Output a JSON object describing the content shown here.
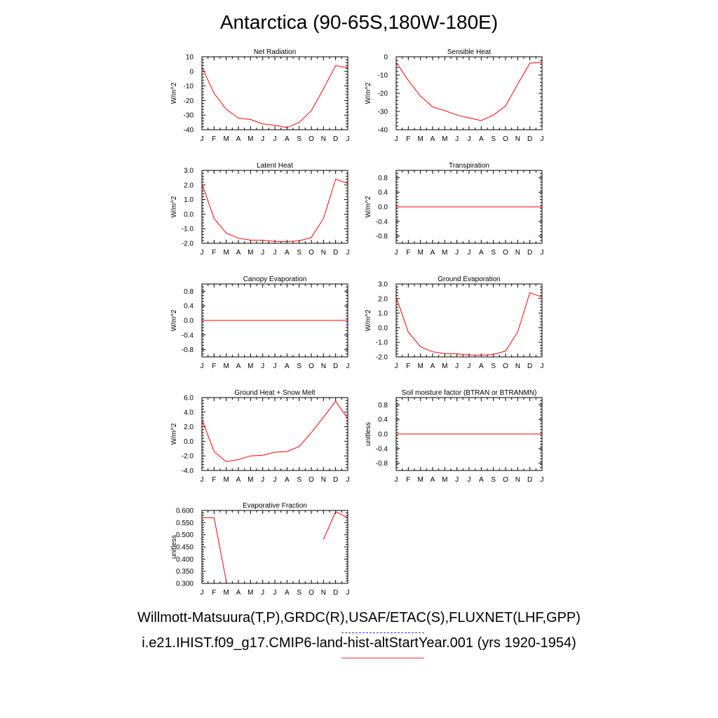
{
  "title": "Antarctica (90-65S,180W-180E)",
  "legend": {
    "obs": "Willmott-Matsuura(T,P),GRDC(R),USAF/ETAC(S),FLUXNET(LHF,GPP)",
    "model": "i.e21.IHIST.f09_g17.CMIP6-land-hist-altStartYear.001 (yrs 1920-1954)",
    "colors": {
      "obs": "#3333ff",
      "model": "#ff0000"
    }
  },
  "chart_data": [
    {
      "type": "line",
      "title": "Net Radiation",
      "ylabel": "W/m^2",
      "categories": [
        "J",
        "F",
        "M",
        "A",
        "M",
        "J",
        "J",
        "A",
        "S",
        "O",
        "N",
        "D",
        "J"
      ],
      "ylim": [
        -40,
        10
      ],
      "yticks": [
        "10",
        "0",
        "-10",
        "-20",
        "-30",
        "-40"
      ],
      "ytick_values": [
        10,
        0,
        -10,
        -20,
        -30,
        -40
      ],
      "series": [
        {
          "values": [
            3,
            -15,
            -26,
            -32,
            -33,
            -36,
            -37,
            -38.5,
            -35,
            -27,
            -12,
            4,
            2.5
          ]
        }
      ]
    },
    {
      "type": "line",
      "title": "Sensible Heat",
      "ylabel": "W/m^2",
      "categories": [
        "J",
        "F",
        "M",
        "A",
        "M",
        "J",
        "J",
        "A",
        "S",
        "O",
        "N",
        "D",
        "J"
      ],
      "ylim": [
        -40,
        0
      ],
      "yticks": [
        "0",
        "-10",
        "-20",
        "-30",
        "-40"
      ],
      "ytick_values": [
        0,
        -10,
        -20,
        -30,
        -40
      ],
      "series": [
        {
          "values": [
            -3,
            -13,
            -21.5,
            -27.5,
            -29.5,
            -32,
            -33.5,
            -35,
            -32,
            -27,
            -15,
            -3.5,
            -3
          ]
        }
      ]
    },
    {
      "type": "line",
      "title": "Latent Heat",
      "ylabel": "W/m^2",
      "categories": [
        "J",
        "F",
        "M",
        "A",
        "M",
        "J",
        "J",
        "A",
        "S",
        "O",
        "N",
        "D",
        "J"
      ],
      "ylim": [
        -2,
        3
      ],
      "yticks": [
        "3.0",
        "2.0",
        "1.0",
        "0.0",
        "-1.0",
        "-2.0"
      ],
      "ytick_values": [
        3,
        2,
        1,
        0,
        -1,
        -2
      ],
      "series": [
        {
          "values": [
            2.1,
            -0.3,
            -1.3,
            -1.65,
            -1.78,
            -1.8,
            -1.87,
            -1.88,
            -1.83,
            -1.6,
            -0.3,
            2.4,
            2.1
          ]
        }
      ]
    },
    {
      "type": "line",
      "title": "Transpiration",
      "ylabel": "W/m^2",
      "categories": [
        "J",
        "F",
        "M",
        "A",
        "M",
        "J",
        "J",
        "A",
        "S",
        "O",
        "N",
        "D",
        "J"
      ],
      "ylim": [
        -1,
        1
      ],
      "yticks": [
        "0.8",
        "0.4",
        "0.0",
        "-0.4",
        "-0.8"
      ],
      "ytick_values": [
        0.8,
        0.4,
        0,
        -0.4,
        -0.8
      ],
      "series": [
        {
          "values": [
            0,
            0,
            0,
            0,
            0,
            0,
            0,
            0,
            0,
            0,
            0,
            0,
            0
          ]
        }
      ]
    },
    {
      "type": "line",
      "title": "Canopy Evaporation",
      "ylabel": "W/m^2",
      "categories": [
        "J",
        "F",
        "M",
        "A",
        "M",
        "J",
        "J",
        "A",
        "S",
        "O",
        "N",
        "D",
        "J"
      ],
      "ylim": [
        -1,
        1
      ],
      "yticks": [
        "0.8",
        "0.4",
        "0.0",
        "-0.4",
        "-0.8"
      ],
      "ytick_values": [
        0.8,
        0.4,
        0,
        -0.4,
        -0.8
      ],
      "series": [
        {
          "values": [
            0,
            0,
            0,
            0,
            0,
            0,
            0,
            0,
            0,
            0,
            0,
            0,
            0
          ]
        }
      ]
    },
    {
      "type": "line",
      "title": "Ground Evaporation",
      "ylabel": "W/m^2",
      "categories": [
        "J",
        "F",
        "M",
        "A",
        "M",
        "J",
        "J",
        "A",
        "S",
        "O",
        "N",
        "D",
        "J"
      ],
      "ylim": [
        -2,
        3
      ],
      "yticks": [
        "3.0",
        "2.0",
        "1.0",
        "0.0",
        "-1.0",
        "-2.0"
      ],
      "ytick_values": [
        3,
        2,
        1,
        0,
        -1,
        -2
      ],
      "series": [
        {
          "values": [
            2.1,
            -0.3,
            -1.3,
            -1.65,
            -1.78,
            -1.8,
            -1.87,
            -1.88,
            -1.83,
            -1.6,
            -0.3,
            2.4,
            2.1
          ]
        }
      ]
    },
    {
      "type": "line",
      "title": "Ground Heat + Snow Melt",
      "ylabel": "W/m^2",
      "categories": [
        "J",
        "F",
        "M",
        "A",
        "M",
        "J",
        "J",
        "A",
        "S",
        "O",
        "N",
        "D",
        "J"
      ],
      "ylim": [
        -4,
        6
      ],
      "yticks": [
        "6.0",
        "4.0",
        "2.0",
        "0.0",
        "-2.0",
        "-4.0"
      ],
      "ytick_values": [
        6,
        4,
        2,
        0,
        -2,
        -4
      ],
      "series": [
        {
          "values": [
            3,
            -1.4,
            -2.8,
            -2.5,
            -2,
            -1.9,
            -1.5,
            -1.4,
            -0.7,
            1.2,
            3.3,
            5.5,
            3.1
          ]
        }
      ]
    },
    {
      "type": "line",
      "title": "Soil moisture factor (BTRAN or BTRANMN)",
      "ylabel": "unitless",
      "categories": [
        "J",
        "F",
        "M",
        "A",
        "M",
        "J",
        "J",
        "A",
        "S",
        "O",
        "N",
        "D",
        "J"
      ],
      "ylim": [
        -1,
        1
      ],
      "yticks": [
        "0.8",
        "0.4",
        "0.0",
        "-0.4",
        "-0.8"
      ],
      "ytick_values": [
        0.8,
        0.4,
        0,
        -0.4,
        -0.8
      ],
      "series": [
        {
          "values": [
            0,
            0,
            0,
            0,
            0,
            0,
            0,
            0,
            0,
            0,
            0,
            0,
            0
          ]
        }
      ]
    },
    {
      "type": "line",
      "title": "Evaporative Fraction",
      "ylabel": "unitless",
      "categories": [
        "J",
        "F",
        "M",
        "A",
        "M",
        "J",
        "J",
        "A",
        "S",
        "O",
        "N",
        "D",
        "J"
      ],
      "ylim": [
        0.3,
        0.6
      ],
      "yticks": [
        "0.600",
        "0.550",
        "0.500",
        "0.450",
        "0.400",
        "0.350",
        "0.300"
      ],
      "ytick_values": [
        0.6,
        0.55,
        0.5,
        0.45,
        0.4,
        0.35,
        0.3
      ],
      "series": [
        {
          "values": [
            0.57,
            0.57,
            0.31,
            null,
            null,
            null,
            null,
            null,
            null,
            null,
            0.48,
            0.595,
            0.57
          ]
        }
      ]
    }
  ]
}
